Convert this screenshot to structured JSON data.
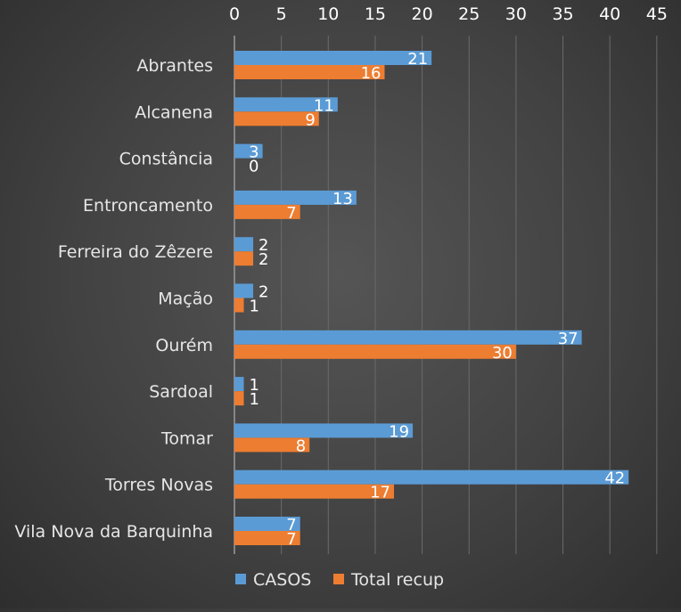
{
  "chart_data": {
    "type": "bar",
    "orientation": "horizontal",
    "categories": [
      "Abrantes",
      "Alcanena",
      "Constância",
      "Entroncamento",
      "Ferreira do Zêzere",
      "Mação",
      "Ourém",
      "Sardoal",
      "Tomar",
      "Torres Novas",
      "Vila Nova da Barquinha"
    ],
    "series": [
      {
        "name": "CASOS",
        "color": "#5B9BD5",
        "values": [
          21,
          11,
          3,
          13,
          2,
          2,
          37,
          1,
          19,
          42,
          7
        ]
      },
      {
        "name": "Total recup",
        "color": "#ED7D31",
        "values": [
          16,
          9,
          0,
          7,
          2,
          1,
          30,
          1,
          8,
          17,
          7
        ]
      }
    ],
    "xlim": [
      0,
      45
    ],
    "x_ticks": [
      0,
      5,
      10,
      15,
      20,
      25,
      30,
      35,
      40,
      45
    ],
    "x_axis_position": "top",
    "gridlines": true,
    "data_labels": true,
    "legend_position": "bottom",
    "title": "",
    "xlabel": "",
    "ylabel": ""
  },
  "colors": {
    "text": "#FFFFFF",
    "label_text": "#E6E6E6",
    "gridline": "#6A6A6A"
  }
}
